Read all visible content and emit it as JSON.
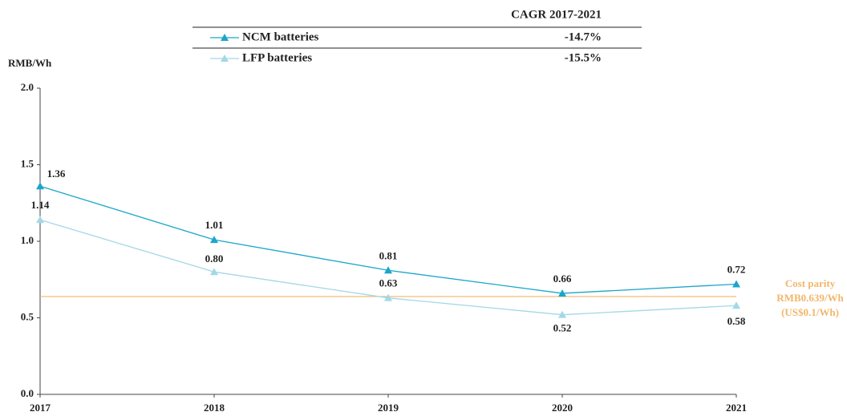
{
  "chart_data": {
    "type": "line",
    "y_label": "RMB/Wh",
    "legend_header": "CAGR 2017-2021",
    "x": [
      2017,
      2018,
      2019,
      2020,
      2021
    ],
    "xlim": [
      2017,
      2021
    ],
    "ylim": [
      0,
      2
    ],
    "yticks": [
      {
        "value": 0,
        "label": "0.0"
      },
      0.5,
      {
        "value": 1,
        "label": "1.0"
      },
      1.5,
      {
        "value": 2,
        "label": "2.0"
      }
    ],
    "series": [
      {
        "name": "NCM batteries",
        "color": "#1aa6cb",
        "cagr": "-14.7%",
        "values": [
          1.36,
          1.01,
          0.81,
          0.66,
          0.72
        ],
        "value_labels": [
          "1.36",
          "1.01",
          "0.81",
          "0.66",
          "0.72"
        ]
      },
      {
        "name": "LFP batteries",
        "color": "#a3d8e6",
        "cagr": "-15.5%",
        "values": [
          1.14,
          0.8,
          0.63,
          0.52,
          0.58
        ],
        "value_labels": [
          "1.14",
          "0.80",
          "0.63",
          "0.52",
          "0.58"
        ]
      }
    ],
    "reference_line": {
      "value": 0.639,
      "color": "#f2b66a",
      "label": [
        "Cost parity",
        "RMB0.639/Wh",
        "(US$0.1/Wh)"
      ]
    }
  }
}
